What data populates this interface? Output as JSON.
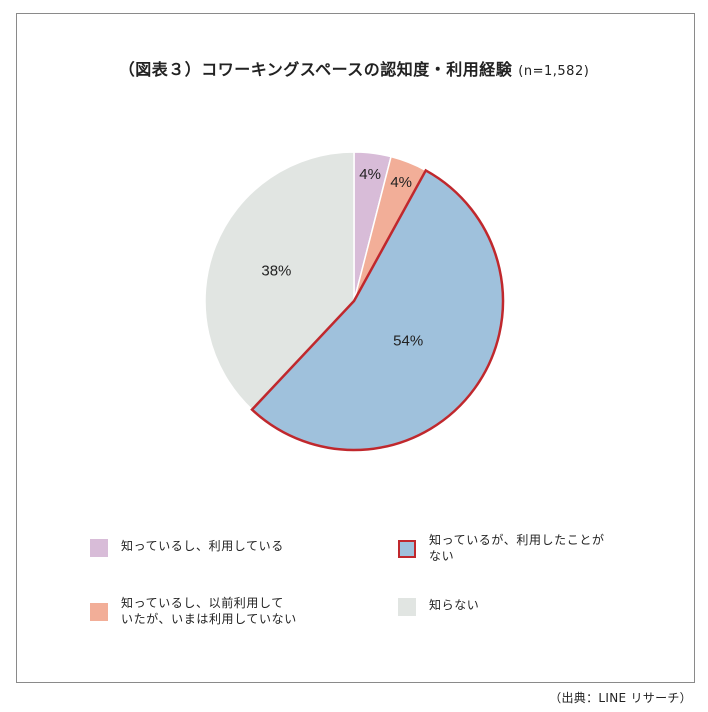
{
  "title": "（図表３）コワーキングスペースの認知度・利用経験",
  "sample": "(n=1,582)",
  "source": "（出典：LINE リサーチ）",
  "chart_data": {
    "type": "pie",
    "title": "（図表３）コワーキングスペースの認知度・利用経験",
    "subtitle": "(n=1,582)",
    "start_angle_deg": 0,
    "direction": "clockwise",
    "slices": [
      {
        "label": "知っているし、利用している",
        "value": 4,
        "value_label": "4%",
        "color": "#d8bcd8",
        "highlighted": false
      },
      {
        "label": "知っているし、以前利用していたが、いまは利用していない",
        "value": 4,
        "value_label": "4%",
        "color": "#f2ae98",
        "highlighted": false
      },
      {
        "label": "知っているが、利用したことがない",
        "value": 54,
        "value_label": "54%",
        "color": "#9fc1dc",
        "highlighted": true
      },
      {
        "label": "知らない",
        "value": 38,
        "value_label": "38%",
        "color": "#e1e5e2",
        "highlighted": false
      }
    ],
    "highlight_color": "#c0282d",
    "legend": {
      "placement": "bottom",
      "items": [
        {
          "text": "知っているし、利用している",
          "color": "#d8bcd8",
          "outlined": false
        },
        {
          "text": "知っているが、利用したことが\nない",
          "color": "#9fc1dc",
          "outlined": true
        },
        {
          "text": "知っているし、以前利用して\nいたが、いまは利用していない",
          "color": "#f2ae98",
          "outlined": false
        },
        {
          "text": "知らない",
          "color": "#e1e5e2",
          "outlined": false
        }
      ]
    }
  }
}
